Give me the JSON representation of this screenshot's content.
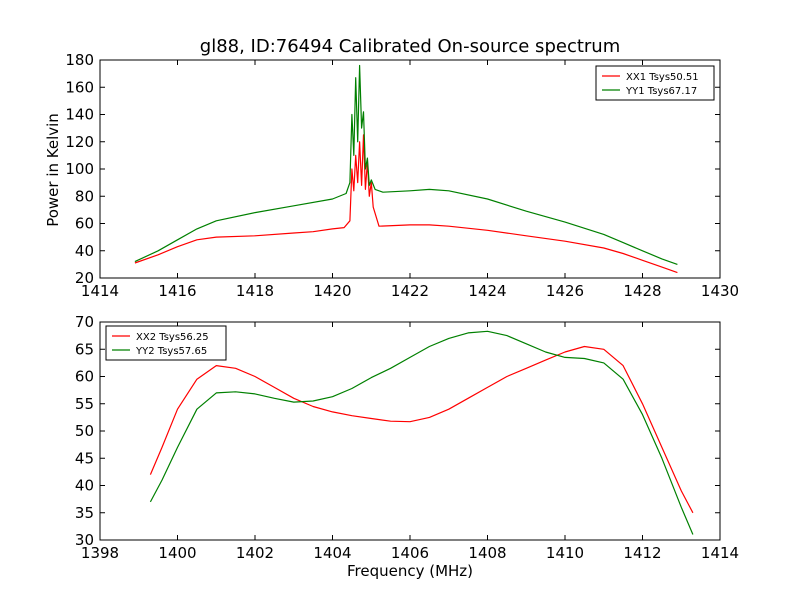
{
  "figure": {
    "title": "gl88, ID:76494 Calibrated On-source spectrum"
  },
  "chart_data": [
    {
      "type": "line",
      "title": "gl88, ID:76494 Calibrated On-source spectrum",
      "xlabel": "",
      "ylabel": "Power in Kelvin",
      "xlim": [
        1414,
        1430
      ],
      "ylim": [
        20,
        180
      ],
      "xticks": [
        1414,
        1416,
        1418,
        1420,
        1422,
        1424,
        1426,
        1428,
        1430
      ],
      "yticks": [
        20,
        40,
        60,
        80,
        100,
        120,
        140,
        160,
        180
      ],
      "legend_position": "top-right",
      "grid": false,
      "series": [
        {
          "name": "XX1 Tsys50.51",
          "color": "#ff0000",
          "x": [
            1414.9,
            1415.5,
            1416.0,
            1416.5,
            1417.0,
            1418.0,
            1419.0,
            1419.5,
            1420.0,
            1420.3,
            1420.45,
            1420.5,
            1420.55,
            1420.6,
            1420.65,
            1420.7,
            1420.75,
            1420.8,
            1420.85,
            1420.9,
            1420.95,
            1421.0,
            1421.05,
            1421.2,
            1422.0,
            1422.5,
            1423.0,
            1424.0,
            1425.0,
            1426.0,
            1427.0,
            1427.5,
            1428.0,
            1428.5,
            1428.9
          ],
          "y": [
            31,
            37,
            43,
            48,
            50,
            51,
            53,
            54,
            56,
            57,
            62,
            100,
            84,
            110,
            90,
            120,
            88,
            125,
            85,
            105,
            80,
            90,
            72,
            58,
            59,
            59,
            58,
            55,
            51,
            47,
            42,
            38,
            33,
            28,
            24
          ]
        },
        {
          "name": "YY1 Tsys67.17",
          "color": "#008000",
          "x": [
            1414.9,
            1415.5,
            1416.0,
            1416.5,
            1417.0,
            1418.0,
            1419.0,
            1420.0,
            1420.35,
            1420.45,
            1420.5,
            1420.55,
            1420.6,
            1420.65,
            1420.7,
            1420.75,
            1420.8,
            1420.85,
            1420.9,
            1420.95,
            1421.0,
            1421.1,
            1421.3,
            1422.0,
            1422.5,
            1423.0,
            1424.0,
            1425.0,
            1426.0,
            1427.0,
            1427.5,
            1428.0,
            1428.5,
            1428.9
          ],
          "y": [
            32,
            40,
            48,
            56,
            62,
            68,
            73,
            78,
            82,
            90,
            140,
            110,
            167,
            120,
            176,
            130,
            142,
            100,
            108,
            88,
            92,
            85,
            83,
            84,
            85,
            84,
            78,
            69,
            61,
            52,
            46,
            40,
            34,
            30
          ]
        }
      ]
    },
    {
      "type": "line",
      "title": "",
      "xlabel": "Frequency (MHz)",
      "ylabel": "",
      "xlim": [
        1398,
        1414
      ],
      "ylim": [
        30,
        70
      ],
      "xticks": [
        1398,
        1400,
        1402,
        1404,
        1406,
        1408,
        1410,
        1412,
        1414
      ],
      "yticks": [
        30,
        35,
        40,
        45,
        50,
        55,
        60,
        65,
        70
      ],
      "legend_position": "top-left",
      "grid": false,
      "series": [
        {
          "name": "XX2 Tsys56.25",
          "color": "#ff0000",
          "x": [
            1399.3,
            1399.6,
            1400.0,
            1400.5,
            1401.0,
            1401.5,
            1402.0,
            1402.5,
            1403.0,
            1403.5,
            1404.0,
            1404.5,
            1405.0,
            1405.5,
            1406.0,
            1406.5,
            1407.0,
            1407.5,
            1408.0,
            1408.5,
            1409.0,
            1409.5,
            1410.0,
            1410.5,
            1411.0,
            1411.5,
            1412.0,
            1412.5,
            1413.0,
            1413.3
          ],
          "y": [
            42,
            47,
            54,
            59.5,
            62,
            61.5,
            60,
            58,
            56,
            54.5,
            53.5,
            52.8,
            52.3,
            51.8,
            51.7,
            52.5,
            54,
            56,
            58,
            60,
            61.5,
            63,
            64.5,
            65.5,
            65,
            62,
            55,
            47,
            39,
            35
          ]
        },
        {
          "name": "YY2 Tsys57.65",
          "color": "#008000",
          "x": [
            1399.3,
            1399.6,
            1400.0,
            1400.5,
            1401.0,
            1401.5,
            1402.0,
            1402.5,
            1403.0,
            1403.5,
            1404.0,
            1404.5,
            1405.0,
            1405.5,
            1406.0,
            1406.5,
            1407.0,
            1407.5,
            1408.0,
            1408.5,
            1409.0,
            1409.5,
            1410.0,
            1410.5,
            1411.0,
            1411.5,
            1412.0,
            1412.5,
            1413.0,
            1413.3
          ],
          "y": [
            37,
            41,
            47,
            54,
            57,
            57.2,
            56.8,
            56,
            55.3,
            55.5,
            56.3,
            57.8,
            59.8,
            61.5,
            63.5,
            65.5,
            67,
            68,
            68.3,
            67.5,
            66,
            64.5,
            63.5,
            63.3,
            62.5,
            59.5,
            53,
            45,
            36,
            31
          ]
        }
      ]
    }
  ]
}
